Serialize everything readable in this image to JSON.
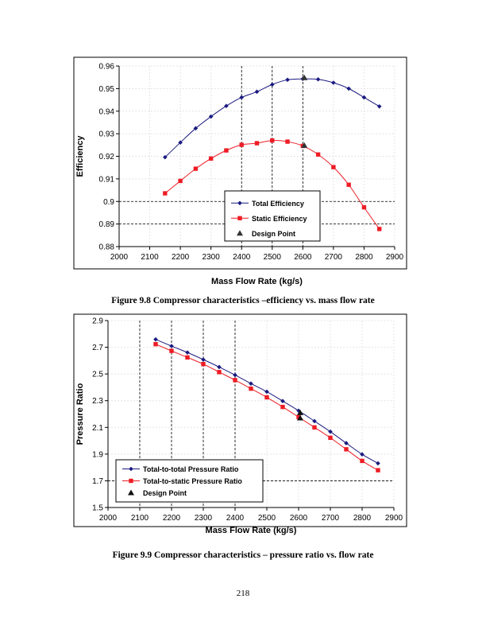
{
  "chart_data": [
    {
      "type": "line",
      "title": "",
      "xlabel": "Mass Flow Rate (kg/s)",
      "ylabel": "Efficiency",
      "xlim": [
        2000,
        2900
      ],
      "ylim": [
        0.88,
        0.96
      ],
      "xticks": [
        "2000",
        "2100",
        "2200",
        "2300",
        "2400",
        "2500",
        "2600",
        "2700",
        "2800",
        "2900"
      ],
      "yticks": [
        "0.88",
        "0.89",
        "0.9",
        "0.91",
        "0.92",
        "0.93",
        "0.94",
        "0.95",
        "0.96"
      ],
      "legend_position": "bottom-center",
      "dashed_vertical_gridlines": [
        2400,
        2500,
        2600
      ],
      "dashed_horizontal_gridlines": [
        0.9,
        0.89
      ],
      "x": [
        2150,
        2200,
        2250,
        2300,
        2350,
        2400,
        2450,
        2500,
        2550,
        2600,
        2650,
        2700,
        2750,
        2800,
        2850
      ],
      "series": [
        {
          "name": "Total Efficiency",
          "color": "#1a1a80",
          "marker": "diamond",
          "values": [
            0.9196,
            0.9261,
            0.9324,
            0.9376,
            0.9423,
            0.9461,
            0.9486,
            0.9518,
            0.9539,
            0.9543,
            0.9541,
            0.9526,
            0.95,
            0.9461,
            0.9421
          ]
        },
        {
          "name": "Static Efficiency",
          "color": "#ee1c25",
          "marker": "square",
          "values": [
            0.9036,
            0.9091,
            0.9145,
            0.919,
            0.9226,
            0.9251,
            0.9258,
            0.927,
            0.9265,
            0.9246,
            0.9208,
            0.9152,
            0.9074,
            0.8974,
            0.8878
          ]
        },
        {
          "name": "Design Point",
          "color": "#333333",
          "marker": "triangle",
          "points": [
            [
              2605,
              0.9548
            ],
            [
              2605,
              0.9248
            ]
          ]
        }
      ]
    },
    {
      "type": "line",
      "title": "",
      "xlabel": "Mass Flow Rate (kg/s)",
      "ylabel": "Pressure Ratio",
      "xlim": [
        2000,
        2900
      ],
      "ylim": [
        1.5,
        2.9
      ],
      "xticks": [
        "2000",
        "2100",
        "2200",
        "2300",
        "2400",
        "2500",
        "2600",
        "2700",
        "2800",
        "2900"
      ],
      "yticks": [
        "1.5",
        "1.7",
        "1.9",
        "2.1",
        "2.3",
        "2.5",
        "2.7",
        "2.9"
      ],
      "legend_position": "bottom-left",
      "dashed_vertical_gridlines": [
        2100,
        2200,
        2300,
        2400
      ],
      "dashed_horizontal_gridlines": [
        1.7
      ],
      "x": [
        2150,
        2200,
        2250,
        2300,
        2350,
        2400,
        2450,
        2500,
        2550,
        2600,
        2650,
        2700,
        2750,
        2800,
        2850
      ],
      "series": [
        {
          "name": "Total-to-total Pressure Ratio",
          "color": "#1a1a80",
          "marker": "diamond",
          "values": [
            2.759,
            2.709,
            2.661,
            2.608,
            2.552,
            2.492,
            2.428,
            2.367,
            2.297,
            2.225,
            2.147,
            2.068,
            1.982,
            1.898,
            1.831
          ]
        },
        {
          "name": "Total-to-static Pressure Ratio",
          "color": "#ee1c25",
          "marker": "square",
          "values": [
            2.723,
            2.673,
            2.624,
            2.574,
            2.514,
            2.454,
            2.39,
            2.325,
            2.253,
            2.177,
            2.1,
            2.022,
            1.936,
            1.849,
            1.779
          ]
        },
        {
          "name": "Design Point",
          "color": "#111111",
          "marker": "triangle",
          "points": [
            [
              2605,
              2.21
            ],
            [
              2605,
              2.17
            ]
          ]
        }
      ]
    }
  ],
  "captions": {
    "fig1": "Figure 9.8 Compressor characteristics –efficiency vs. mass flow rate",
    "fig2": "Figure 9.9 Compressor characteristics – pressure ratio vs. flow rate"
  },
  "page_number": "218"
}
